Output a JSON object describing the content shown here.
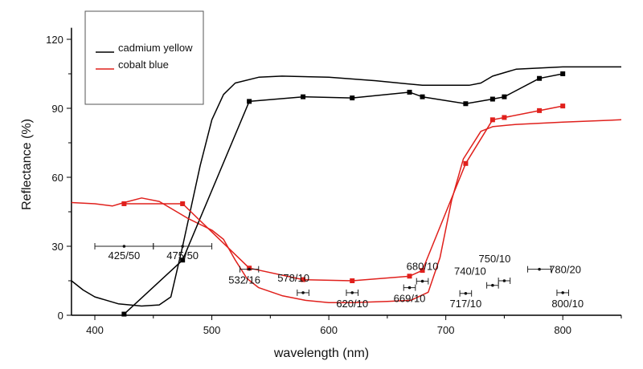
{
  "chart_data": {
    "type": "line",
    "title": "",
    "xlabel": "wavelength (nm)",
    "ylabel": "Reflectance (%)",
    "xlim": [
      380,
      850
    ],
    "ylim": [
      0,
      125
    ],
    "xticks": [
      400,
      500,
      600,
      700,
      800
    ],
    "yticks": [
      0,
      30,
      60,
      90,
      120
    ],
    "grid": false,
    "legend": {
      "placement": "top-left",
      "entries": [
        {
          "label": "cadmium yellow",
          "color": "#000000"
        },
        {
          "label": "cobalt blue",
          "color": "#e0201c"
        }
      ]
    },
    "series": [
      {
        "name": "cadmium yellow",
        "kind": "spectrum",
        "color": "#000000",
        "x": [
          380,
          390,
          400,
          420,
          440,
          455,
          465,
          475,
          490,
          500,
          510,
          520,
          540,
          560,
          600,
          640,
          660,
          680,
          700,
          720,
          730,
          740,
          760,
          800,
          850
        ],
        "y": [
          15,
          11,
          8,
          5,
          4,
          4.5,
          8,
          30,
          65,
          85,
          96,
          101,
          103.5,
          104,
          103.5,
          102,
          101,
          100,
          100,
          100,
          101,
          104,
          107,
          108,
          108
        ]
      },
      {
        "name": "cobalt blue",
        "kind": "spectrum",
        "color": "#e0201c",
        "x": [
          380,
          400,
          415,
          425,
          440,
          455,
          470,
          480,
          500,
          510,
          520,
          530,
          540,
          560,
          580,
          600,
          620,
          650,
          670,
          685,
          695,
          705,
          715,
          730,
          740,
          760,
          800,
          850
        ],
        "y": [
          49,
          48.5,
          47.5,
          49,
          51,
          49.5,
          45,
          42,
          37,
          33,
          24,
          16,
          12,
          8.5,
          6.5,
          5.5,
          5.5,
          6,
          6.5,
          10,
          25,
          50,
          68,
          80,
          82,
          83,
          84,
          85
        ]
      },
      {
        "name": "cadmium yellow",
        "kind": "multispectral",
        "color": "#000000",
        "x": [
          425,
          475,
          532,
          578,
          620,
          669,
          680,
          717,
          740,
          750,
          780,
          800
        ],
        "y": [
          0.5,
          24,
          93,
          95,
          94.5,
          97,
          95,
          92,
          94,
          95,
          103,
          105
        ]
      },
      {
        "name": "cobalt blue",
        "kind": "multispectral",
        "color": "#e0201c",
        "x": [
          425,
          475,
          532,
          578,
          620,
          669,
          680,
          717,
          740,
          750,
          780,
          800
        ],
        "y": [
          48.5,
          48.5,
          20.5,
          15.5,
          15,
          17,
          19.5,
          66,
          85,
          86,
          89,
          91
        ]
      }
    ],
    "filter_bands": [
      {
        "label": "425/50",
        "center": 425,
        "width": 50,
        "y": 30
      },
      {
        "label": "475/50",
        "center": 475,
        "width": 50,
        "y": 30
      },
      {
        "label": "532/16",
        "center": 532,
        "width": 16,
        "y": 20
      },
      {
        "label": "578/10",
        "center": 578,
        "width": 10,
        "y": 9.8
      },
      {
        "label": "620/10",
        "center": 620,
        "width": 10,
        "y": 9.8
      },
      {
        "label": "669/10",
        "center": 669,
        "width": 10,
        "y": 12
      },
      {
        "label": "680/10",
        "center": 680,
        "width": 10,
        "y": 14.8
      },
      {
        "label": "717/10",
        "center": 717,
        "width": 10,
        "y": 9.5
      },
      {
        "label": "740/10",
        "center": 740,
        "width": 10,
        "y": 13
      },
      {
        "label": "750/10",
        "center": 750,
        "width": 10,
        "y": 15
      },
      {
        "label": "780/20",
        "center": 780,
        "width": 20,
        "y": 20
      },
      {
        "label": "800/10",
        "center": 800,
        "width": 10,
        "y": 9.8
      }
    ]
  }
}
